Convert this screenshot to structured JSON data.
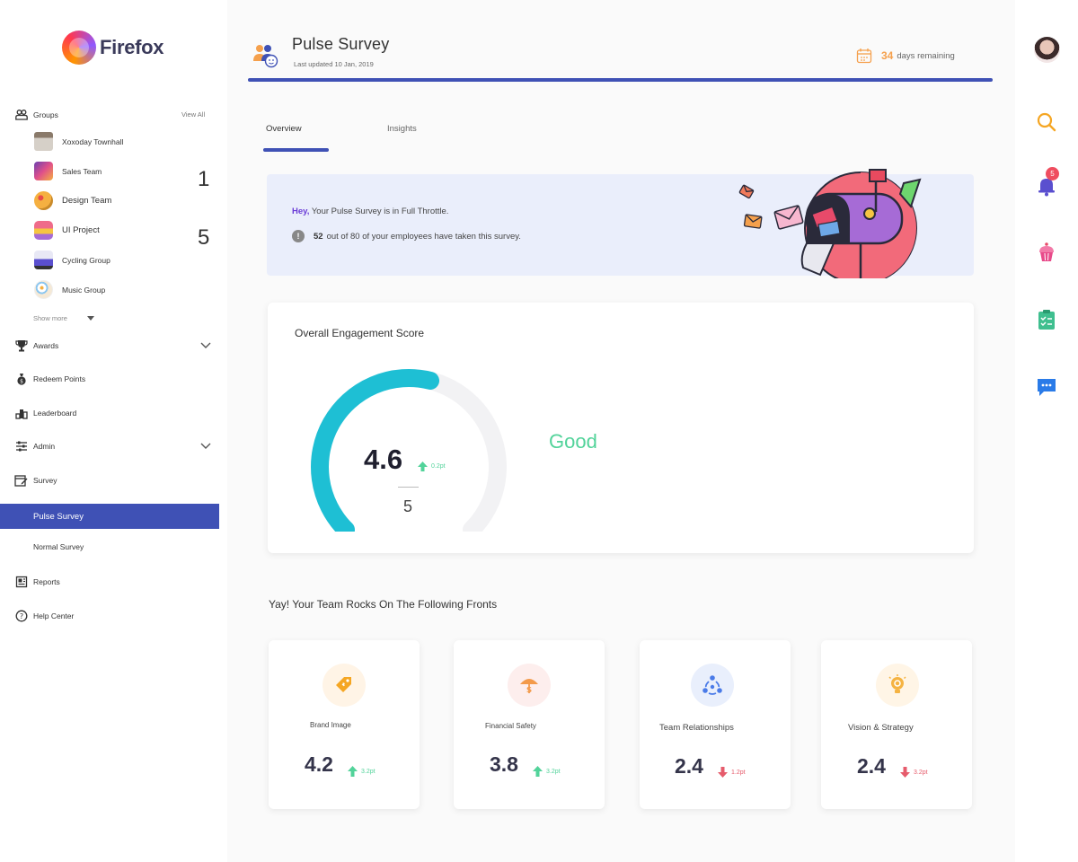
{
  "app": {
    "brand": "Firefox"
  },
  "sidebar": {
    "groups_label": "Groups",
    "view_all": "View All",
    "groups": [
      {
        "label": "Xoxoday Townhall"
      },
      {
        "label": "Sales Team"
      },
      {
        "label": "Design Team"
      },
      {
        "label": "UI Project"
      },
      {
        "label": "Cycling Group"
      },
      {
        "label": "Music Group"
      }
    ],
    "group_counts": [
      "1",
      "5"
    ],
    "show_more": "Show more",
    "awards": "Awards",
    "redeem_points": "Redeem Points",
    "leaderboard": "Leaderboard",
    "admin": "Admin",
    "survey": "Survey",
    "pulse_survey": "Pulse Survey",
    "normal_survey": "Normal Survey",
    "reports": "Reports",
    "help_center": "Help Center"
  },
  "header": {
    "title": "Pulse Survey",
    "updated": "Last updated 10 Jan, 2019",
    "days_num": "34",
    "days_text": "days remaining"
  },
  "tabs": [
    {
      "label": "Overview",
      "active": true
    },
    {
      "label": "Insights",
      "active": false
    }
  ],
  "banner": {
    "hey": "Hey,",
    "line1": "Your Pulse Survey is in Full Throttle.",
    "info_glyph": "!",
    "count": "52",
    "line2": "out of 80 of your employees have taken this survey."
  },
  "engagement": {
    "title": "Overall Engagement Score",
    "score": "4.6",
    "score_value": 4.6,
    "max": "5",
    "max_value": 5,
    "delta": "0.2pt",
    "delta_direction": "up",
    "rating": "Good",
    "gauge_color": "#1ebfd4",
    "good_color": "#52d39a"
  },
  "fronts": {
    "title": "Yay! Your Team Rocks On The Following Fronts",
    "items": [
      {
        "label": "Brand Image",
        "value": "4.2",
        "delta": "3.2pt",
        "direction": "up",
        "icon": "tag-icon"
      },
      {
        "label": "Financial Safety",
        "value": "3.8",
        "delta": "3.2pt",
        "direction": "up",
        "icon": "umbrella-dollar-icon"
      },
      {
        "label": "Team Relationships",
        "value": "2.4",
        "delta": "1.2pt",
        "direction": "down",
        "icon": "team-cycle-icon"
      },
      {
        "label": "Vision & Strategy",
        "value": "2.4",
        "delta": "3.2pt",
        "direction": "down",
        "icon": "lightbulb-icon"
      }
    ]
  },
  "rail": {
    "notification_count": "5",
    "icons": [
      "avatar",
      "search-icon",
      "bell-icon",
      "cupcake-icon",
      "clipboard-icon",
      "chat-icon"
    ]
  },
  "colors": {
    "primary": "#3f51b5",
    "up": "#52d39a",
    "down": "#e65c6c",
    "accent_orange": "#f5a04c"
  }
}
